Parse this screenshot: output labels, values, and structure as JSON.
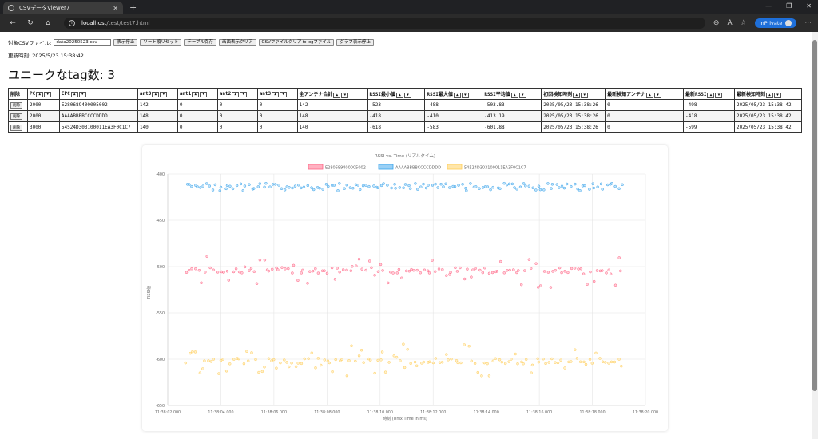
{
  "browser": {
    "tab_title": "CSVデータViewer7",
    "url_host": "localhost",
    "url_path": "/test/test7.html",
    "inprivate_label": "InPrivate"
  },
  "controls": {
    "file_label": "対象CSVファイル:",
    "file_value": "data20250523.csv",
    "buttons": [
      "表示停止",
      "ソート順リセット",
      "テーブル保存",
      "画面表示クリア",
      "CSVファイルクリア to logファイル",
      "グラフ表示停止"
    ]
  },
  "updated": "更新時刻: 2025/5/23 15:38:42",
  "heading": "ユニークなtag数: 3",
  "table": {
    "headers": [
      "削除",
      "PC",
      "EPC",
      "ant0",
      "ant1",
      "ant2",
      "ant3",
      "全アンテナ合計",
      "RSSI最小値",
      "RSSI最大値",
      "RSSI平均値",
      "初回検知時刻",
      "最新検知アンテナ",
      "最新RSSI",
      "最新検知時刻"
    ],
    "sort_up": "▲",
    "sort_down": "▼",
    "delete_label": "削除",
    "rows": [
      [
        "2000",
        "E280689400005002",
        "142",
        "0",
        "0",
        "0",
        "142",
        "-523",
        "-488",
        "-503.83",
        "2025/05/23 15:38:26",
        "0",
        "-498",
        "2025/05/23 15:38:42"
      ],
      [
        "2000",
        "AAAABBBBCCCCDDDD",
        "148",
        "0",
        "0",
        "0",
        "148",
        "-418",
        "-410",
        "-413.19",
        "2025/05/23 15:38:26",
        "0",
        "-418",
        "2025/05/23 15:38:42"
      ],
      [
        "3000",
        "54524D303100011EA3F0C1C7",
        "140",
        "0",
        "0",
        "0",
        "140",
        "-618",
        "-583",
        "-601.88",
        "2025/05/23 15:38:26",
        "0",
        "-599",
        "2025/05/23 15:38:42"
      ]
    ]
  },
  "chart_data": {
    "type": "scatter",
    "title": "RSSI vs. Time (リアルタイム)",
    "xlabel": "時刻 (Unix Time in ms)",
    "ylabel": "RSSI値",
    "xlim": [
      "11:38:02.000",
      "11:38:20.000"
    ],
    "x_ticks": [
      "11:38:02.000",
      "11:38:04.000",
      "11:38:06.000",
      "11:38:08.000",
      "11:38:10.000",
      "11:38:12.000",
      "11:38:14.000",
      "11:38:16.000",
      "11:38:18.000",
      "11:38:20.000"
    ],
    "ylim": [
      -650,
      -400
    ],
    "y_ticks": [
      "-400",
      "-450",
      "-500",
      "-550",
      "-600",
      "-650"
    ],
    "grid": true,
    "legend_position": "top",
    "series": [
      {
        "name": "E280689400005002",
        "color": "#ff6384",
        "fill": "#ffb1c1",
        "range": [
          -523,
          -488
        ],
        "center": -504,
        "count": 142
      },
      {
        "name": "AAAABBBBCCCCDDDD",
        "color": "#36a2eb",
        "fill": "#9ad0f5",
        "range": [
          -418,
          -410
        ],
        "center": -413,
        "count": 148
      },
      {
        "name": "54524D303100011EA3F0C1C7",
        "color": "#ffcd56",
        "fill": "#ffe6aa",
        "range": [
          -618,
          -583
        ],
        "center": -602,
        "count": 140
      }
    ]
  }
}
